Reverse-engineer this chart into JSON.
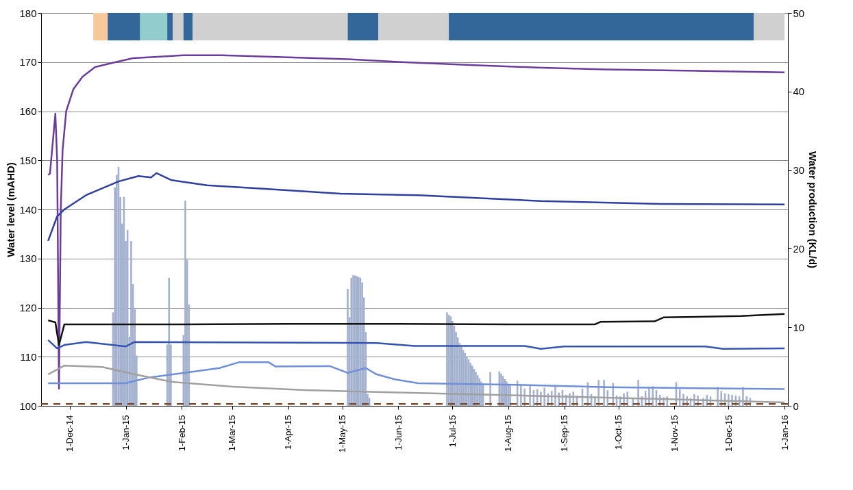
{
  "chart_data": {
    "type": "line",
    "ylabel": "Water level (mAHD)",
    "y2label": "Water production (KL/d)",
    "xlim": [
      "2014-11-17",
      "2016-01-01"
    ],
    "xticks": [
      {
        "value": "2014-12-01",
        "label": "1-Dec-14"
      },
      {
        "value": "2015-01-01",
        "label": "1-Jan-15"
      },
      {
        "value": "2015-02-01",
        "label": "1-Feb-15"
      },
      {
        "value": "2015-03-01",
        "label": "1-Mar-15"
      },
      {
        "value": "2015-04-01",
        "label": "1-Apr-15"
      },
      {
        "value": "2015-05-01",
        "label": "1-May-15"
      },
      {
        "value": "2015-06-01",
        "label": "1-Jun-15"
      },
      {
        "value": "2015-07-01",
        "label": "1-Jul-15"
      },
      {
        "value": "2015-08-01",
        "label": "1-Aug-15"
      },
      {
        "value": "2015-09-01",
        "label": "1-Sep-15"
      },
      {
        "value": "2015-10-01",
        "label": "1-Oct-15"
      },
      {
        "value": "2015-11-01",
        "label": "1-Nov-15"
      },
      {
        "value": "2015-12-01",
        "label": "1-Dec-15"
      },
      {
        "value": "2016-01-01",
        "label": "1-Jan-16"
      }
    ],
    "ylim": [
      100,
      180
    ],
    "yticks": [
      100,
      110,
      120,
      130,
      140,
      150,
      160,
      170,
      180
    ],
    "y2lim": [
      0,
      50
    ],
    "y2ticks": [
      0,
      10,
      20,
      30,
      40,
      50
    ],
    "grid": "y",
    "bands": [
      {
        "axis": "x",
        "from": "2014-12-14",
        "to": "2014-12-22",
        "color": "#f8c99a"
      },
      {
        "axis": "x",
        "from": "2014-12-22",
        "to": "2015-01-09",
        "color": "#336699"
      },
      {
        "axis": "x",
        "from": "2015-01-09",
        "to": "2015-01-24",
        "color": "#93cccc"
      },
      {
        "axis": "x",
        "from": "2015-01-24",
        "to": "2015-01-27",
        "color": "#336699"
      },
      {
        "axis": "x",
        "from": "2015-01-27",
        "to": "2015-02-02",
        "color": "#d0d0d0"
      },
      {
        "axis": "x",
        "from": "2015-02-02",
        "to": "2015-02-07",
        "color": "#336699"
      },
      {
        "axis": "x",
        "from": "2015-02-07",
        "to": "2015-05-04",
        "color": "#d0d0d0"
      },
      {
        "axis": "x",
        "from": "2015-05-04",
        "to": "2015-05-21",
        "color": "#336699"
      },
      {
        "axis": "x",
        "from": "2015-05-21",
        "to": "2015-06-29",
        "color": "#d0d0d0"
      },
      {
        "axis": "x",
        "from": "2015-06-29",
        "to": "2015-12-15",
        "color": "#336699"
      },
      {
        "axis": "x",
        "from": "2015-12-15",
        "to": "2016-01-01",
        "color": "#d0d0d0"
      }
    ],
    "ref_lines": [
      {
        "axis": "y",
        "value": 100.4,
        "color": "#7a4a2a",
        "line_style": "dashed"
      }
    ],
    "series": [
      {
        "type": "bar",
        "axis": "y2",
        "color": "#a3b1cf",
        "x": [
          "2014-12-25",
          "2014-12-26",
          "2014-12-27",
          "2014-12-28",
          "2014-12-29",
          "2014-12-30",
          "2014-12-31",
          "2015-01-01",
          "2015-01-02",
          "2015-01-03",
          "2015-01-04",
          "2015-01-05",
          "2015-01-06",
          "2015-01-07",
          "2015-01-24",
          "2015-01-25",
          "2015-01-26",
          "2015-02-02",
          "2015-02-03",
          "2015-02-04",
          "2015-02-05",
          "2015-05-04",
          "2015-05-05",
          "2015-05-06",
          "2015-05-07",
          "2015-05-08",
          "2015-05-09",
          "2015-05-10",
          "2015-05-11",
          "2015-05-12",
          "2015-05-13",
          "2015-05-14",
          "2015-05-15",
          "2015-05-16",
          "2015-06-28",
          "2015-06-29",
          "2015-06-30",
          "2015-07-01",
          "2015-07-02",
          "2015-07-03",
          "2015-07-04",
          "2015-07-05",
          "2015-07-06",
          "2015-07-07",
          "2015-07-08",
          "2015-07-09",
          "2015-07-10",
          "2015-07-11",
          "2015-07-12",
          "2015-07-13",
          "2015-07-14",
          "2015-07-15",
          "2015-07-16",
          "2015-07-17",
          "2015-07-18",
          "2015-07-22",
          "2015-07-27",
          "2015-07-28",
          "2015-07-29",
          "2015-07-30",
          "2015-07-31",
          "2015-08-01",
          "2015-08-02",
          "2015-08-06",
          "2015-08-08",
          "2015-08-10",
          "2015-08-13",
          "2015-08-15",
          "2015-08-17",
          "2015-08-19",
          "2015-08-21",
          "2015-08-23",
          "2015-08-25",
          "2015-08-27",
          "2015-08-29",
          "2015-08-31",
          "2015-09-02",
          "2015-09-04",
          "2015-09-06",
          "2015-09-08",
          "2015-09-11",
          "2015-09-14",
          "2015-09-16",
          "2015-09-18",
          "2015-09-20",
          "2015-09-23",
          "2015-09-25",
          "2015-09-28",
          "2015-09-30",
          "2015-10-02",
          "2015-10-04",
          "2015-10-06",
          "2015-10-09",
          "2015-10-12",
          "2015-10-14",
          "2015-10-16",
          "2015-10-18",
          "2015-10-20",
          "2015-10-22",
          "2015-10-24",
          "2015-10-26",
          "2015-10-28",
          "2015-11-02",
          "2015-11-04",
          "2015-11-06",
          "2015-11-08",
          "2015-11-10",
          "2015-11-12",
          "2015-11-14",
          "2015-11-17",
          "2015-11-19",
          "2015-11-21",
          "2015-11-25",
          "2015-11-27",
          "2015-11-29",
          "2015-12-01",
          "2015-12-03",
          "2015-12-05",
          "2015-12-07",
          "2015-12-09",
          "2015-12-11",
          "2015-12-13"
        ],
        "values": [
          11.9,
          27.8,
          29.4,
          30.4,
          26.6,
          23.2,
          26.6,
          21,
          22.4,
          8.8,
          21,
          15.5,
          12.3,
          6.4,
          7.8,
          16.3,
          7.8,
          9,
          26.1,
          18.6,
          12.9,
          14.9,
          11.3,
          16.3,
          16.6,
          16.6,
          16.5,
          16.4,
          16.3,
          15.7,
          13.8,
          9.4,
          1.5,
          1,
          11.9,
          11.6,
          11.4,
          10.8,
          10.2,
          9.4,
          8.7,
          8,
          7.5,
          7.1,
          6.7,
          6.3,
          5.9,
          5.5,
          5.1,
          4.7,
          4.3,
          3.9,
          3.5,
          3.1,
          2.8,
          4.3,
          4.4,
          4.1,
          3.8,
          3.4,
          3.1,
          2.8,
          2.6,
          3.2,
          2.6,
          2.2,
          2.5,
          2.0,
          2.1,
          1.8,
          2.3,
          1.6,
          1.9,
          2.6,
          1.7,
          2.0,
          1.4,
          1.6,
          1.8,
          1.3,
          2.2,
          3.0,
          1.5,
          1.2,
          3.3,
          3.3,
          2.0,
          2.9,
          1.3,
          1.2,
          1.6,
          1.8,
          1.0,
          3.3,
          1.2,
          1.9,
          2.4,
          2.5,
          2.0,
          1.4,
          1.1,
          1.2,
          3.0,
          2.1,
          1.5,
          1.2,
          1.0,
          1.5,
          1.3,
          1.0,
          1.4,
          1.2,
          2.4,
          1.9,
          1.6,
          1.5,
          1.4,
          1.3,
          1.2,
          2.4,
          1.2,
          1.0
        ]
      },
      {
        "axis": "y",
        "color": "#6a3d9a",
        "x": [
          "2014-11-19",
          "2014-11-20",
          "2014-11-23",
          "2014-11-24",
          "2014-11-25",
          "2014-11-26",
          "2014-11-27",
          "2014-11-29",
          "2014-12-03",
          "2014-12-08",
          "2014-12-15",
          "2014-12-24",
          "2015-01-05",
          "2015-02-02",
          "2015-02-23",
          "2015-03-29",
          "2015-05-04",
          "2015-06-03",
          "2015-07-11",
          "2015-08-17",
          "2015-09-24",
          "2015-11-01",
          "2016-01-01"
        ],
        "values": [
          147,
          147.3,
          159.5,
          150,
          103.5,
          140,
          152,
          160,
          164.5,
          167,
          169,
          169.8,
          170.8,
          171.4,
          171.4,
          171,
          170.6,
          170,
          169.4,
          168.9,
          168.5,
          168.3,
          167.9
        ]
      },
      {
        "axis": "y",
        "color": "#2e3f9e",
        "x": [
          "2014-11-19",
          "2014-11-24",
          "2014-11-28",
          "2014-12-10",
          "2014-12-28",
          "2015-01-08",
          "2015-01-15",
          "2015-01-18",
          "2015-01-26",
          "2015-02-15",
          "2015-03-18",
          "2015-04-30",
          "2015-06-12",
          "2015-08-19",
          "2015-10-24",
          "2016-01-01"
        ],
        "values": [
          133.6,
          138.6,
          140,
          142.9,
          145.7,
          146.8,
          146.5,
          147.4,
          146,
          144.9,
          144.2,
          143.2,
          142.9,
          141.7,
          141.1,
          141
        ]
      },
      {
        "axis": "y",
        "color": "#111111",
        "x": [
          "2014-11-19",
          "2014-11-23",
          "2014-11-25",
          "2014-11-28",
          "2015-02-01",
          "2015-04-01",
          "2015-06-01",
          "2015-08-01",
          "2015-09-18",
          "2015-09-21",
          "2015-10-21",
          "2015-10-26",
          "2015-12-08",
          "2016-01-01"
        ],
        "values": [
          117.4,
          117,
          112.4,
          116.6,
          116.6,
          116.7,
          116.7,
          116.6,
          116.6,
          117.1,
          117.2,
          118,
          118.3,
          118.7
        ]
      },
      {
        "axis": "y",
        "color": "#3553b0",
        "x": [
          "2014-11-19",
          "2014-11-24",
          "2014-11-28",
          "2014-12-10",
          "2015-01-01",
          "2015-01-06",
          "2015-05-20",
          "2015-06-10",
          "2015-08-10",
          "2015-08-19",
          "2015-09-01",
          "2015-11-18",
          "2015-11-28",
          "2016-01-01"
        ],
        "values": [
          113.4,
          111.7,
          112.4,
          113,
          112.1,
          113,
          112.8,
          112.2,
          112.2,
          111.6,
          112.1,
          112.1,
          111.6,
          111.7
        ]
      },
      {
        "axis": "y",
        "color": "#6f8fd6",
        "x": [
          "2014-11-19",
          "2015-01-01",
          "2015-01-13",
          "2015-02-02",
          "2015-02-22",
          "2015-03-05",
          "2015-03-21",
          "2015-03-25",
          "2015-04-24",
          "2015-05-04",
          "2015-05-14",
          "2015-05-20",
          "2015-05-30",
          "2015-06-12",
          "2015-08-05",
          "2015-09-25",
          "2016-01-01"
        ],
        "values": [
          104.6,
          104.6,
          105.7,
          106.7,
          107.7,
          108.9,
          108.9,
          108,
          108.1,
          106.7,
          107.7,
          106.4,
          105.4,
          104.6,
          104.3,
          103.8,
          103.4
        ]
      },
      {
        "axis": "y",
        "color": "#a0a0a0",
        "x": [
          "2014-11-19",
          "2014-11-28",
          "2014-12-19",
          "2015-01-06",
          "2015-01-26",
          "2015-03-01",
          "2015-04-10",
          "2015-06-12",
          "2015-10-24",
          "2016-01-01"
        ],
        "values": [
          106.4,
          108.2,
          107.9,
          106.4,
          104.9,
          103.9,
          103.2,
          102.6,
          101.4,
          100.7
        ]
      }
    ]
  }
}
